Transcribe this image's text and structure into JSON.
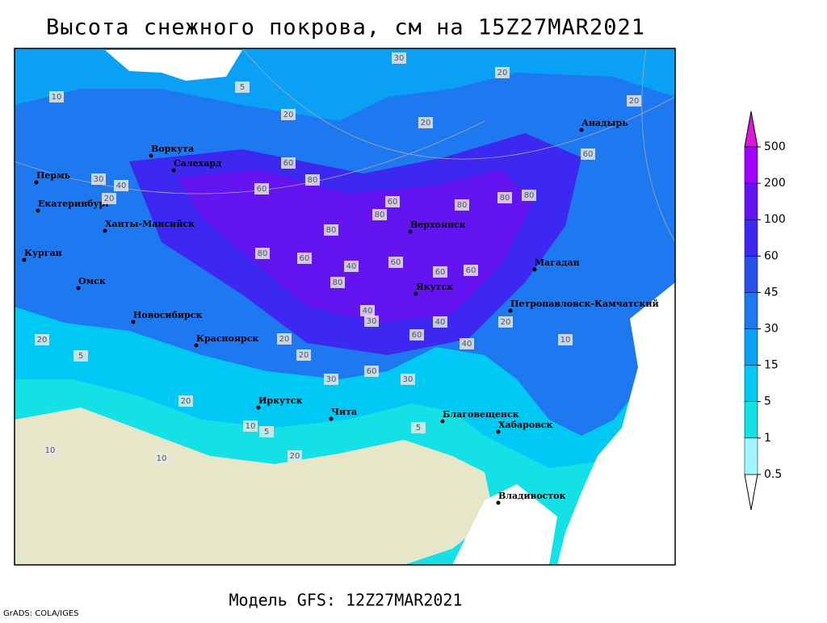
{
  "title": "Высота снежного покрова, см на 15Z27MAR2021",
  "footer": "Модель GFS: 12Z27MAR2021",
  "credit": "GrADS: COLA/IGES",
  "cities": [
    "Воркута",
    "Салехард",
    "Пермь",
    "Екатеринбург",
    "Ханты-Мансийск",
    "Курган",
    "Омск",
    "Новосибирск",
    "Красноярск",
    "Иркутск",
    "Чита",
    "Верхоянск",
    "Якутск",
    "Магадан",
    "Анадырь",
    "Петропавловск-Камчатский",
    "Благовещенск",
    "Хабаровск",
    "Владивосток"
  ],
  "contour_labels": [
    30,
    20,
    20,
    10,
    20,
    5,
    20,
    40,
    30,
    20,
    60,
    80,
    60,
    80,
    60,
    80,
    80,
    80,
    80,
    60,
    80,
    60,
    40,
    60,
    60,
    60,
    80,
    40,
    40,
    30,
    20,
    20,
    10,
    20,
    10,
    5,
    20,
    30,
    20,
    10,
    5,
    40,
    60,
    60,
    30,
    20,
    10,
    5
  ],
  "legend": {
    "levels": [
      0.5,
      1,
      5,
      15,
      30,
      45,
      60,
      100,
      200,
      500
    ],
    "colors": [
      "#ffffff",
      "#a0f5ff",
      "#14e1e6",
      "#00c8f5",
      "#0aa0f5",
      "#1e78f0",
      "#2850e6",
      "#3c28f0",
      "#6414f0",
      "#a000ff",
      "#dc14dc"
    ]
  }
}
